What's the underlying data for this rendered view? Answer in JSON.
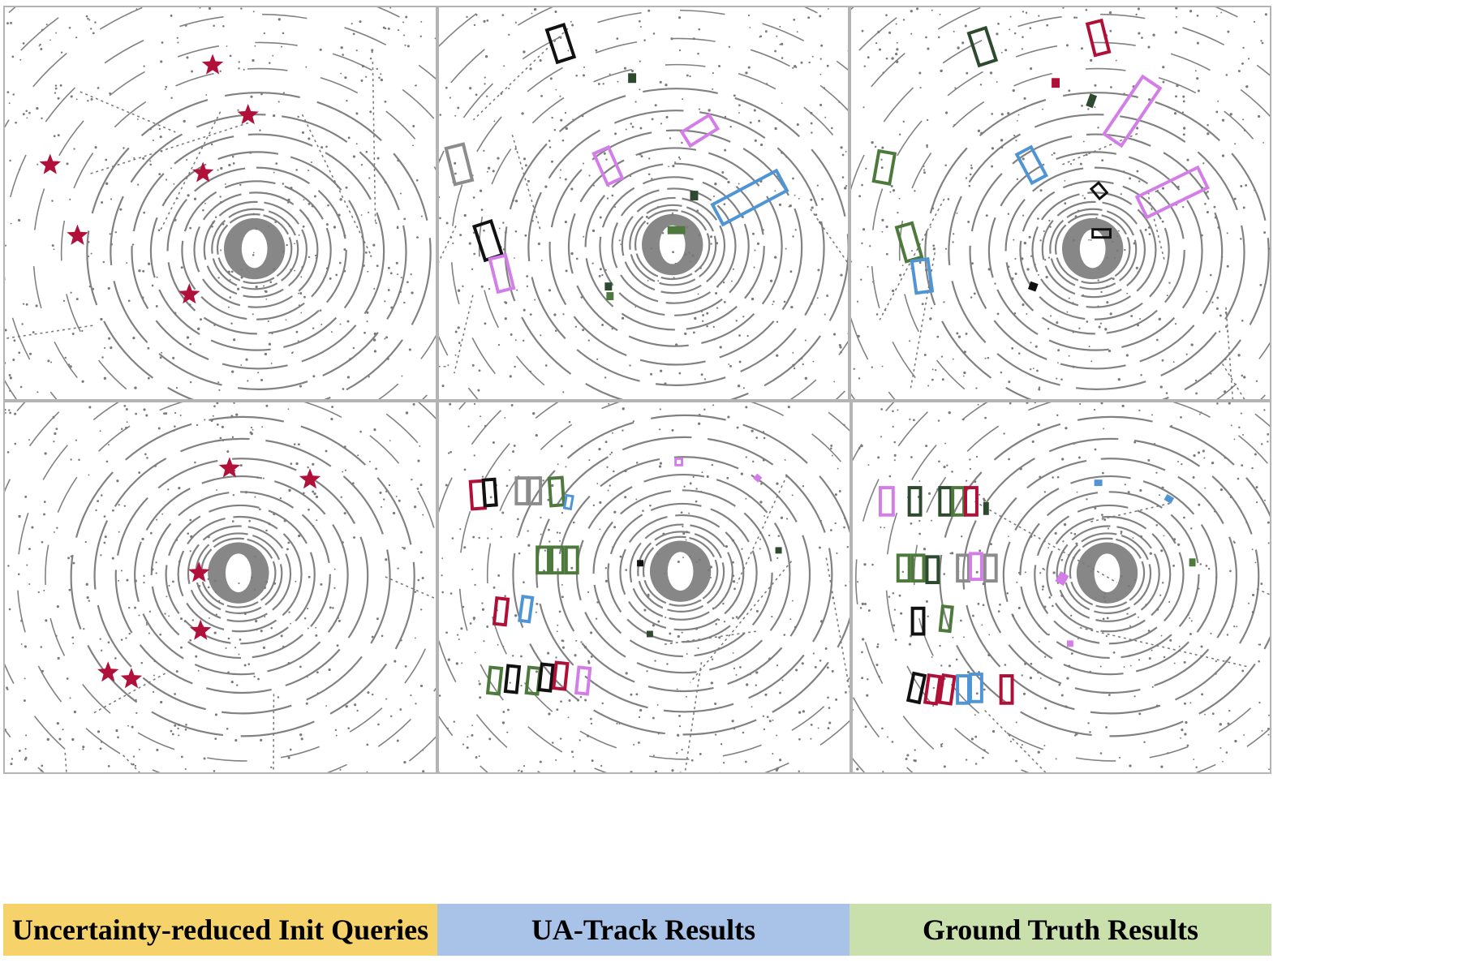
{
  "captions": {
    "left": "Uncertainty-reduced Init Queries",
    "middle": "UA-Track Results",
    "right": "Ground Truth Results"
  },
  "colors": {
    "point_cloud": "#7a7a7a",
    "star": "#b0103a",
    "caption_left_bg": "#f6d36a",
    "caption_middle_bg": "#a9c3e8",
    "caption_right_bg": "#c9e0ad",
    "box_black": "#111111",
    "box_gray": "#8c8c8c",
    "box_violet": "#d37ee8",
    "box_blue": "#4f95d6",
    "box_green": "#4d7a3c",
    "box_darkgreen": "#2e4a2e",
    "box_crimson": "#b01038"
  },
  "rows": [
    {
      "init_queries": [
        "star",
        "star",
        "star",
        "star",
        "star",
        "star"
      ],
      "ua_track": [
        "black",
        "darkgreen",
        "violet",
        "gray",
        "violet",
        "blue",
        "darkgreen",
        "black",
        "violet",
        "green",
        "darkgreen",
        "green"
      ],
      "ground_truth": [
        "darkgreen",
        "crimson",
        "crimson",
        "violet",
        "green",
        "blue",
        "darkgreen",
        "violet",
        "green",
        "black",
        "black",
        "blue",
        "black"
      ]
    },
    {
      "init_queries": [
        "star",
        "star",
        "star",
        "star",
        "star",
        "star"
      ],
      "ua_track": [
        "crimson",
        "black",
        "gray",
        "gray",
        "green",
        "blue",
        "green",
        "green",
        "green",
        "crimson",
        "blue",
        "green",
        "black",
        "green",
        "black",
        "crimson",
        "violet",
        "violet",
        "violet",
        "black",
        "darkgreen",
        "darkgreen"
      ],
      "ground_truth": [
        "violet",
        "darkgreen",
        "darkgreen",
        "green",
        "crimson",
        "green",
        "green",
        "green",
        "darkgreen",
        "gray",
        "violet",
        "gray",
        "black",
        "green",
        "black",
        "crimson",
        "crimson",
        "blue",
        "blue",
        "crimson",
        "blue",
        "blue",
        "green",
        "violet",
        "violet"
      ]
    }
  ]
}
